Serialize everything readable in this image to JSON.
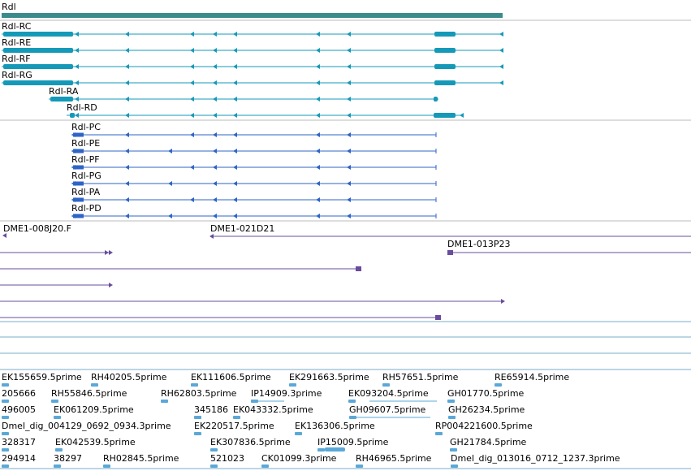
{
  "colors": {
    "gene": "#3a8c8c",
    "transcript": "#1599b8",
    "protein": "#2f64c7",
    "clone": "#6a4c9c",
    "est": "#5aa8d8",
    "divider_gray": "#bbbbbb",
    "divider_blue": "#7aaec8"
  },
  "gene": {
    "label": "Rdl"
  },
  "transcripts": [
    {
      "label": "Rdl-RC"
    },
    {
      "label": "Rdl-RE"
    },
    {
      "label": "Rdl-RF"
    },
    {
      "label": "Rdl-RG"
    },
    {
      "label": "Rdl-RA"
    },
    {
      "label": "Rdl-RD"
    }
  ],
  "proteins": [
    {
      "label": "Rdl-PC"
    },
    {
      "label": "Rdl-PE"
    },
    {
      "label": "Rdl-PF"
    },
    {
      "label": "Rdl-PG"
    },
    {
      "label": "Rdl-PA"
    },
    {
      "label": "Rdl-PD"
    }
  ],
  "clones": [
    {
      "label": "DME1-008J20.F"
    },
    {
      "label": "DME1-021D21"
    },
    {
      "label": "DME1-013P23"
    }
  ],
  "est_rows": [
    [
      "EK155659.5prime",
      "RH40205.5prime",
      "EK111606.5prime",
      "EK291663.5prime",
      "RH57651.5prime",
      "RE65914.5prime"
    ],
    [
      "205666",
      "RH55846.5prime",
      "RH62803.5prime",
      "IP14909.3prime",
      "EK093204.5prime",
      "GH01770.5prime"
    ],
    [
      "496005",
      "EK061209.5prime",
      "345186",
      "EK043332.5prime",
      "GH09607.5prime",
      "GH26234.5prime"
    ],
    [
      "Dmel_dig_004129_0692_0934.3prime",
      "EK220517.5prime",
      "EK136306.5prime",
      "RP004221600.5prime"
    ],
    [
      "328317",
      "EK042539.5prime",
      "EK307836.5prime",
      "IP15009.5prime",
      "GH21784.5prime"
    ],
    [
      "294914",
      "38297",
      "RH02845.5prime",
      "521023",
      "CK01099.3prime",
      "RH46965.5prime",
      "Dmel_dig_013016_0712_1237.3prime"
    ]
  ]
}
